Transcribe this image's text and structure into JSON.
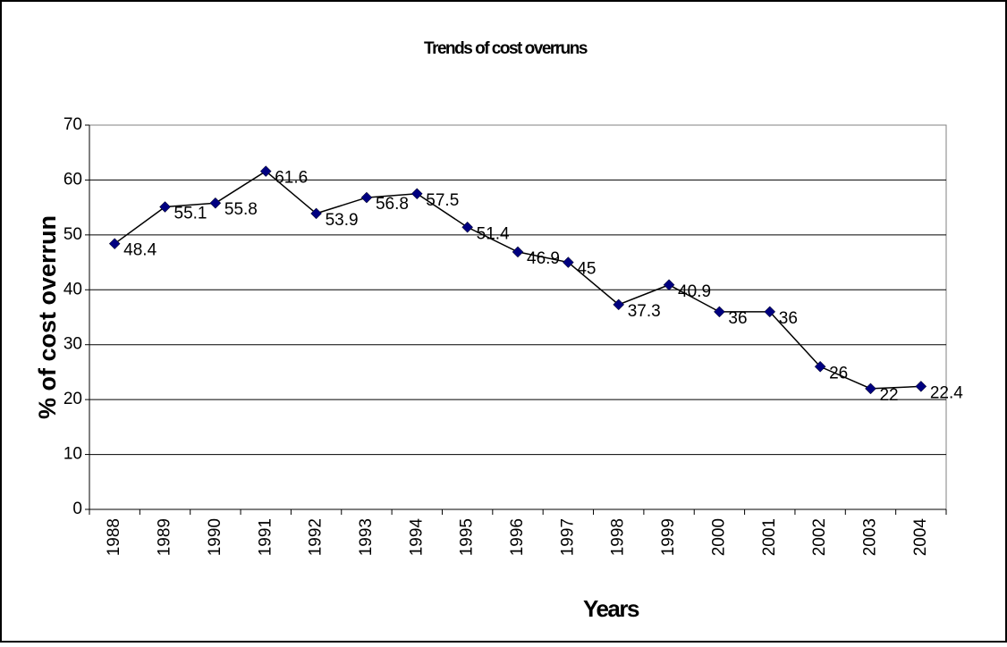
{
  "chart_data": {
    "type": "line",
    "title": "Trends of cost overruns",
    "x_label": "Years",
    "y_label": "% of cost overrun",
    "categories": [
      "1988",
      "1989",
      "1990",
      "1991",
      "1992",
      "1993",
      "1994",
      "1995",
      "1996",
      "1997",
      "1998",
      "1999",
      "2000",
      "2001",
      "2002",
      "2003",
      "2004"
    ],
    "series": [
      {
        "name": "% of cost overrun",
        "color": "#000080",
        "line_color": "#000000",
        "values": [
          48.4,
          55.1,
          55.8,
          61.6,
          53.9,
          56.8,
          57.5,
          51.4,
          46.9,
          45,
          37.3,
          40.9,
          36,
          36,
          26,
          22,
          22.4
        ]
      }
    ],
    "ylim": [
      0,
      70
    ],
    "yticks": [
      0,
      10,
      20,
      30,
      40,
      50,
      60,
      70
    ],
    "grid": true,
    "data_labels": true
  }
}
